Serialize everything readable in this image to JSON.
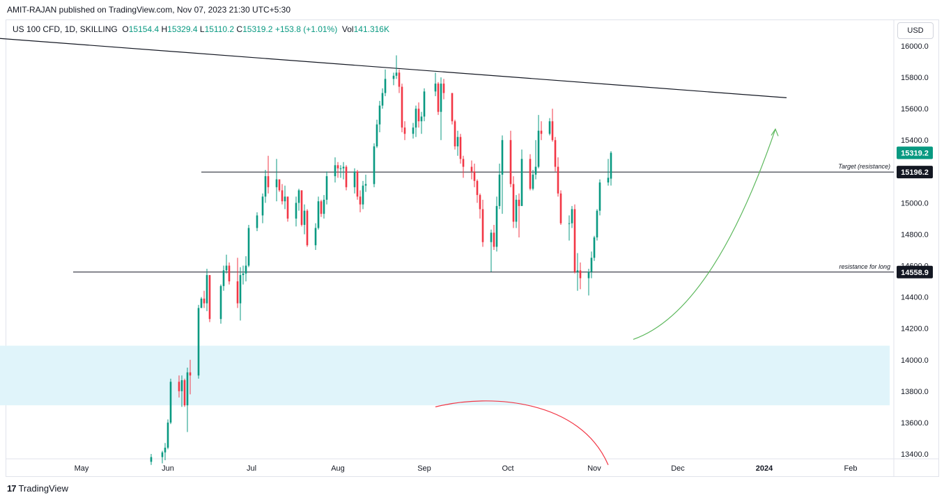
{
  "header": {
    "published": "AMIT-RAJAN published on TradingView.com, Nov 07, 2023 21:30 UTC+5:30"
  },
  "legend": {
    "symbol": "US 100 CFD, 1D, SKILLING",
    "o_label": "O",
    "o_value": "15154.4",
    "h_label": "H",
    "h_value": "15329.4",
    "l_label": "L",
    "l_value": "15110.2",
    "c_label": "C",
    "c_value": "15319.2",
    "change": "+153.8 (+1.01%)",
    "vol_label": "Vol",
    "vol_value": "141.316K"
  },
  "currency_button": "USD",
  "footer": {
    "brand": "TradingView",
    "logo_glyph": "17"
  },
  "colors": {
    "up": "#089981",
    "down": "#f23645",
    "zone": "#e0f4fa",
    "green_arrow": "#5cb85c",
    "red_arc": "#f23645",
    "line": "#131722"
  },
  "chart_data": {
    "type": "candlestick",
    "title": "US 100 CFD, 1D, SKILLING",
    "xlabel": "",
    "ylabel": "",
    "ylim": [
      13330,
      16110
    ],
    "y_ticks": [
      "16000.0",
      "15800.0",
      "15600.0",
      "15400.0",
      "15200.0",
      "15000.0",
      "14800.0",
      "14600.0",
      "14400.0",
      "14200.0",
      "14000.0",
      "13800.0",
      "13600.0",
      "13400.0"
    ],
    "x_ticks": [
      "May",
      "Jun",
      "Jul",
      "Aug",
      "Sep",
      "Oct",
      "Nov",
      "Dec",
      "2024",
      "Feb"
    ],
    "candles": [
      {
        "d": "2023-05-26",
        "o": 13350,
        "h": 13400,
        "l": 13330,
        "c": 13380
      },
      {
        "d": "2023-05-30",
        "o": 13380,
        "h": 13420,
        "l": 13340,
        "c": 13410
      },
      {
        "d": "2023-05-31",
        "o": 13410,
        "h": 13470,
        "l": 13360,
        "c": 13440
      },
      {
        "d": "2023-06-01",
        "o": 13440,
        "h": 13620,
        "l": 13430,
        "c": 13600
      },
      {
        "d": "2023-06-02",
        "o": 13600,
        "h": 13880,
        "l": 13590,
        "c": 13860
      },
      {
        "d": "2023-06-05",
        "o": 13860,
        "h": 13900,
        "l": 13760,
        "c": 13800
      },
      {
        "d": "2023-06-06",
        "o": 13800,
        "h": 13900,
        "l": 13700,
        "c": 13870
      },
      {
        "d": "2023-06-07",
        "o": 13870,
        "h": 13880,
        "l": 13700,
        "c": 13710
      },
      {
        "d": "2023-06-08",
        "o": 13710,
        "h": 13950,
        "l": 13540,
        "c": 13920
      },
      {
        "d": "2023-06-09",
        "o": 13920,
        "h": 14000,
        "l": 13780,
        "c": 13900
      },
      {
        "d": "2023-06-12",
        "o": 13900,
        "h": 14350,
        "l": 13880,
        "c": 14330
      },
      {
        "d": "2023-06-13",
        "o": 14330,
        "h": 14400,
        "l": 14340,
        "c": 14390
      },
      {
        "d": "2023-06-14",
        "o": 14390,
        "h": 14440,
        "l": 14330,
        "c": 14360
      },
      {
        "d": "2023-06-15",
        "o": 14360,
        "h": 14580,
        "l": 14310,
        "c": 14540
      },
      {
        "d": "2023-06-16",
        "o": 14540,
        "h": 14540,
        "l": 14240,
        "c": 14260
      },
      {
        "d": "2023-06-20",
        "o": 14260,
        "h": 14480,
        "l": 14230,
        "c": 14470
      },
      {
        "d": "2023-06-21",
        "o": 14470,
        "h": 14600,
        "l": 14440,
        "c": 14570
      },
      {
        "d": "2023-06-22",
        "o": 14570,
        "h": 14670,
        "l": 14550,
        "c": 14600
      },
      {
        "d": "2023-06-23",
        "o": 14600,
        "h": 14620,
        "l": 14480,
        "c": 14500
      },
      {
        "d": "2023-06-26",
        "o": 14500,
        "h": 14650,
        "l": 14330,
        "c": 14360
      },
      {
        "d": "2023-06-27",
        "o": 14360,
        "h": 14590,
        "l": 14250,
        "c": 14540
      },
      {
        "d": "2023-06-28",
        "o": 14540,
        "h": 14600,
        "l": 14480,
        "c": 14550
      },
      {
        "d": "2023-06-29",
        "o": 14550,
        "h": 14660,
        "l": 14500,
        "c": 14600
      },
      {
        "d": "2023-06-30",
        "o": 14600,
        "h": 14860,
        "l": 14590,
        "c": 14840
      },
      {
        "d": "2023-07-03",
        "o": 14840,
        "h": 14940,
        "l": 14820,
        "c": 14920
      },
      {
        "d": "2023-07-05",
        "o": 14920,
        "h": 15060,
        "l": 14870,
        "c": 15040
      },
      {
        "d": "2023-07-06",
        "o": 15040,
        "h": 15210,
        "l": 15000,
        "c": 15170
      },
      {
        "d": "2023-07-07",
        "o": 15170,
        "h": 15300,
        "l": 15060,
        "c": 15100
      },
      {
        "d": "2023-07-10",
        "o": 15100,
        "h": 15280,
        "l": 15010,
        "c": 15150
      },
      {
        "d": "2023-07-11",
        "o": 15150,
        "h": 15130,
        "l": 15070,
        "c": 15080
      },
      {
        "d": "2023-07-12",
        "o": 15080,
        "h": 15120,
        "l": 14990,
        "c": 15010
      },
      {
        "d": "2023-07-13",
        "o": 15010,
        "h": 15110,
        "l": 14960,
        "c": 15040
      },
      {
        "d": "2023-07-14",
        "o": 15040,
        "h": 15040,
        "l": 14880,
        "c": 14900
      },
      {
        "d": "2023-07-17",
        "o": 14900,
        "h": 15040,
        "l": 14850,
        "c": 15000
      },
      {
        "d": "2023-07-18",
        "o": 15000,
        "h": 15090,
        "l": 14950,
        "c": 15080
      },
      {
        "d": "2023-07-19",
        "o": 15080,
        "h": 15080,
        "l": 14850,
        "c": 14860
      },
      {
        "d": "2023-07-20",
        "o": 14860,
        "h": 14990,
        "l": 14800,
        "c": 14950
      },
      {
        "d": "2023-07-21",
        "o": 14950,
        "h": 14960,
        "l": 14720,
        "c": 14730
      },
      {
        "d": "2023-07-24",
        "o": 14730,
        "h": 14870,
        "l": 14700,
        "c": 14840
      },
      {
        "d": "2023-07-25",
        "o": 14840,
        "h": 15040,
        "l": 14830,
        "c": 15010
      },
      {
        "d": "2023-07-26",
        "o": 15010,
        "h": 15020,
        "l": 14910,
        "c": 14930
      },
      {
        "d": "2023-07-27",
        "o": 14930,
        "h": 15050,
        "l": 14900,
        "c": 15020
      },
      {
        "d": "2023-07-28",
        "o": 15020,
        "h": 15200,
        "l": 14990,
        "c": 15170
      },
      {
        "d": "2023-07-31",
        "o": 15170,
        "h": 15290,
        "l": 15130,
        "c": 15240
      },
      {
        "d": "2023-08-01",
        "o": 15240,
        "h": 15260,
        "l": 15160,
        "c": 15220
      },
      {
        "d": "2023-08-02",
        "o": 15220,
        "h": 15240,
        "l": 15160,
        "c": 15220
      },
      {
        "d": "2023-08-03",
        "o": 15220,
        "h": 15260,
        "l": 15150,
        "c": 15230
      },
      {
        "d": "2023-08-04",
        "o": 15230,
        "h": 15240,
        "l": 15080,
        "c": 15100
      },
      {
        "d": "2023-08-07",
        "o": 15100,
        "h": 15220,
        "l": 15060,
        "c": 15200
      },
      {
        "d": "2023-08-08",
        "o": 15200,
        "h": 15210,
        "l": 15020,
        "c": 15040
      },
      {
        "d": "2023-08-09",
        "o": 15040,
        "h": 15080,
        "l": 14940,
        "c": 14990
      },
      {
        "d": "2023-08-10",
        "o": 14990,
        "h": 15140,
        "l": 14960,
        "c": 15110
      },
      {
        "d": "2023-08-11",
        "o": 15110,
        "h": 15180,
        "l": 15070,
        "c": 15120
      },
      {
        "d": "2023-08-14",
        "o": 15120,
        "h": 15380,
        "l": 15100,
        "c": 15360
      },
      {
        "d": "2023-08-15",
        "o": 15360,
        "h": 15530,
        "l": 15350,
        "c": 15500
      },
      {
        "d": "2023-08-16",
        "o": 15500,
        "h": 15650,
        "l": 15450,
        "c": 15620
      },
      {
        "d": "2023-08-17",
        "o": 15620,
        "h": 15730,
        "l": 15600,
        "c": 15700
      },
      {
        "d": "2023-08-18",
        "o": 15700,
        "h": 15850,
        "l": 15680,
        "c": 15790
      },
      {
        "d": "2023-08-21",
        "o": 15790,
        "h": 15830,
        "l": 15750,
        "c": 15810
      },
      {
        "d": "2023-08-22",
        "o": 15810,
        "h": 15940,
        "l": 15790,
        "c": 15830
      },
      {
        "d": "2023-08-23",
        "o": 15830,
        "h": 15850,
        "l": 15700,
        "c": 15740
      },
      {
        "d": "2023-08-24",
        "o": 15740,
        "h": 15760,
        "l": 15450,
        "c": 15480
      },
      {
        "d": "2023-08-25",
        "o": 15480,
        "h": 15520,
        "l": 15400,
        "c": 15440
      },
      {
        "d": "2023-08-28",
        "o": 15440,
        "h": 15510,
        "l": 15410,
        "c": 15480
      },
      {
        "d": "2023-08-29",
        "o": 15480,
        "h": 15620,
        "l": 15420,
        "c": 15600
      },
      {
        "d": "2023-08-30",
        "o": 15600,
        "h": 15640,
        "l": 15480,
        "c": 15520
      },
      {
        "d": "2023-08-31",
        "o": 15520,
        "h": 15580,
        "l": 15440,
        "c": 15550
      },
      {
        "d": "2023-09-01",
        "o": 15550,
        "h": 15730,
        "l": 15520,
        "c": 15710
      },
      {
        "d": "2023-09-05",
        "o": 15710,
        "h": 15830,
        "l": 15680,
        "c": 15760
      },
      {
        "d": "2023-09-06",
        "o": 15760,
        "h": 15770,
        "l": 15560,
        "c": 15580
      },
      {
        "d": "2023-09-07",
        "o": 15580,
        "h": 15800,
        "l": 15400,
        "c": 15760
      },
      {
        "d": "2023-09-08",
        "o": 15760,
        "h": 15790,
        "l": 15660,
        "c": 15700
      },
      {
        "d": "2023-09-11",
        "o": 15700,
        "h": 15700,
        "l": 15500,
        "c": 15520
      },
      {
        "d": "2023-09-12",
        "o": 15520,
        "h": 15530,
        "l": 15340,
        "c": 15360
      },
      {
        "d": "2023-09-13",
        "o": 15360,
        "h": 15460,
        "l": 15300,
        "c": 15420
      },
      {
        "d": "2023-09-14",
        "o": 15420,
        "h": 15440,
        "l": 15250,
        "c": 15280
      },
      {
        "d": "2023-09-15",
        "o": 15280,
        "h": 15300,
        "l": 15160,
        "c": 15230
      },
      {
        "d": "2023-09-18",
        "o": 15230,
        "h": 15270,
        "l": 15150,
        "c": 15200
      },
      {
        "d": "2023-09-19",
        "o": 15200,
        "h": 15250,
        "l": 15100,
        "c": 15140
      },
      {
        "d": "2023-09-20",
        "o": 15140,
        "h": 15150,
        "l": 15000,
        "c": 15050
      },
      {
        "d": "2023-09-21",
        "o": 15050,
        "h": 15060,
        "l": 14900,
        "c": 14960
      },
      {
        "d": "2023-09-22",
        "o": 14960,
        "h": 15020,
        "l": 14720,
        "c": 14750
      },
      {
        "d": "2023-09-25",
        "o": 14750,
        "h": 14830,
        "l": 14560,
        "c": 14810
      },
      {
        "d": "2023-09-26",
        "o": 14810,
        "h": 14860,
        "l": 14700,
        "c": 14720
      },
      {
        "d": "2023-09-27",
        "o": 14720,
        "h": 15040,
        "l": 14690,
        "c": 14980
      },
      {
        "d": "2023-09-28",
        "o": 14980,
        "h": 15250,
        "l": 14960,
        "c": 15180
      },
      {
        "d": "2023-09-29",
        "o": 15180,
        "h": 15430,
        "l": 14930,
        "c": 15400
      },
      {
        "d": "2023-10-02",
        "o": 15400,
        "h": 15460,
        "l": 15100,
        "c": 15120
      },
      {
        "d": "2023-10-03",
        "o": 15120,
        "h": 15170,
        "l": 14840,
        "c": 14880
      },
      {
        "d": "2023-10-04",
        "o": 14880,
        "h": 15050,
        "l": 14840,
        "c": 15020
      },
      {
        "d": "2023-10-05",
        "o": 15020,
        "h": 15060,
        "l": 14780,
        "c": 14980
      },
      {
        "d": "2023-10-06",
        "o": 14980,
        "h": 15340,
        "l": 14990,
        "c": 15280
      },
      {
        "d": "2023-10-09",
        "o": 15280,
        "h": 15310,
        "l": 15080,
        "c": 15090
      },
      {
        "d": "2023-10-10",
        "o": 15090,
        "h": 15210,
        "l": 15080,
        "c": 15180
      },
      {
        "d": "2023-10-11",
        "o": 15180,
        "h": 15400,
        "l": 15150,
        "c": 15230
      },
      {
        "d": "2023-10-12",
        "o": 15230,
        "h": 15560,
        "l": 15220,
        "c": 15460
      },
      {
        "d": "2023-10-13",
        "o": 15460,
        "h": 15520,
        "l": 15400,
        "c": 15440
      },
      {
        "d": "2023-10-16",
        "o": 15440,
        "h": 15540,
        "l": 15430,
        "c": 15520
      },
      {
        "d": "2023-10-17",
        "o": 15520,
        "h": 15600,
        "l": 15390,
        "c": 15400
      },
      {
        "d": "2023-10-18",
        "o": 15400,
        "h": 15420,
        "l": 15200,
        "c": 15230
      },
      {
        "d": "2023-10-19",
        "o": 15230,
        "h": 15290,
        "l": 15040,
        "c": 15060
      },
      {
        "d": "2023-10-20",
        "o": 15060,
        "h": 15080,
        "l": 14860,
        "c": 14870
      },
      {
        "d": "2023-10-23",
        "o": 14870,
        "h": 14920,
        "l": 14760,
        "c": 14870
      },
      {
        "d": "2023-10-24",
        "o": 14870,
        "h": 14980,
        "l": 14840,
        "c": 14960
      },
      {
        "d": "2023-10-25",
        "o": 14960,
        "h": 14990,
        "l": 14550,
        "c": 14560
      },
      {
        "d": "2023-10-26",
        "o": 14560,
        "h": 14680,
        "l": 14440,
        "c": 14570
      },
      {
        "d": "2023-10-27",
        "o": 14570,
        "h": 14620,
        "l": 14450,
        "c": 14520
      },
      {
        "d": "2023-10-30",
        "o": 14520,
        "h": 14580,
        "l": 14410,
        "c": 14560
      },
      {
        "d": "2023-10-31",
        "o": 14560,
        "h": 14690,
        "l": 14520,
        "c": 14650
      },
      {
        "d": "2023-11-01",
        "o": 14650,
        "h": 14790,
        "l": 14630,
        "c": 14780
      },
      {
        "d": "2023-11-02",
        "o": 14780,
        "h": 14960,
        "l": 14760,
        "c": 14950
      },
      {
        "d": "2023-11-03",
        "o": 14950,
        "h": 15150,
        "l": 14920,
        "c": 15130
      },
      {
        "d": "2023-11-06",
        "o": 15130,
        "h": 15280,
        "l": 15110,
        "c": 15160
      },
      {
        "d": "2023-11-07",
        "o": 15154.4,
        "h": 15329.4,
        "l": 15110.2,
        "c": 15319.2
      }
    ],
    "annotations": {
      "price_tags": [
        {
          "label": "15319.2",
          "value": 15319.2,
          "style": "last-price"
        },
        {
          "label": "15196.2",
          "value": 15196.2,
          "style": "level"
        },
        {
          "label": "14558.9",
          "value": 14558.9,
          "style": "level"
        }
      ],
      "horizontal_lines": [
        {
          "value": 15196.2,
          "from": "2023-06-13",
          "text": "Target (resistance)"
        },
        {
          "value": 14558.9,
          "from": "2023-04-28",
          "text": "resistance for long"
        }
      ],
      "trendline": {
        "from": {
          "d": "2023-03-31",
          "v": 16050
        },
        "to": {
          "d": "2024-01-09",
          "v": 15670
        }
      },
      "zone": {
        "from": "2023-03-31",
        "to": "2024-02-15",
        "top": 14090,
        "bottom": 13710
      },
      "green_arrow": {
        "from": {
          "d": "2023-11-15",
          "v": 14130
        },
        "to": {
          "d": "2024-01-05",
          "v": 15470
        }
      },
      "red_arc": {
        "from": {
          "d": "2023-09-05",
          "v": 13700
        },
        "to": {
          "d": "2023-11-06",
          "v": 13330
        }
      }
    }
  }
}
